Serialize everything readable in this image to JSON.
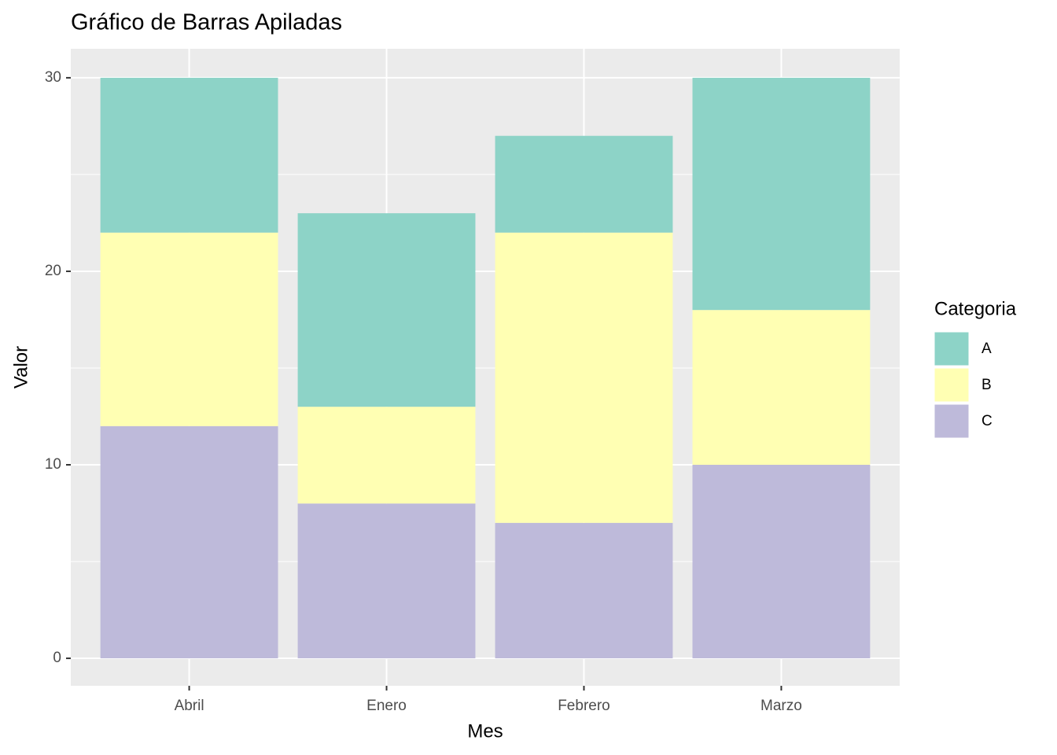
{
  "chart_data": {
    "type": "stacked_bar",
    "title": "Gráfico de Barras Apiladas",
    "x_label": "Mes",
    "y_label": "Valor",
    "categories": [
      "Abril",
      "Enero",
      "Febrero",
      "Marzo"
    ],
    "series": [
      {
        "name": "A",
        "color": "#8DD3C7",
        "values": [
          8,
          10,
          5,
          12
        ]
      },
      {
        "name": "B",
        "color": "#FFFFB3",
        "values": [
          10,
          5,
          15,
          8
        ]
      },
      {
        "name": "C",
        "color": "#BEBADA",
        "values": [
          12,
          8,
          7,
          10
        ]
      }
    ],
    "legend_title": "Categoria",
    "legend_position": "right",
    "ylim": [
      -1.42,
      31.5
    ],
    "yticks": [
      0,
      10,
      20,
      30
    ],
    "minor_yticks": [
      5,
      15,
      25
    ],
    "grid": true
  }
}
